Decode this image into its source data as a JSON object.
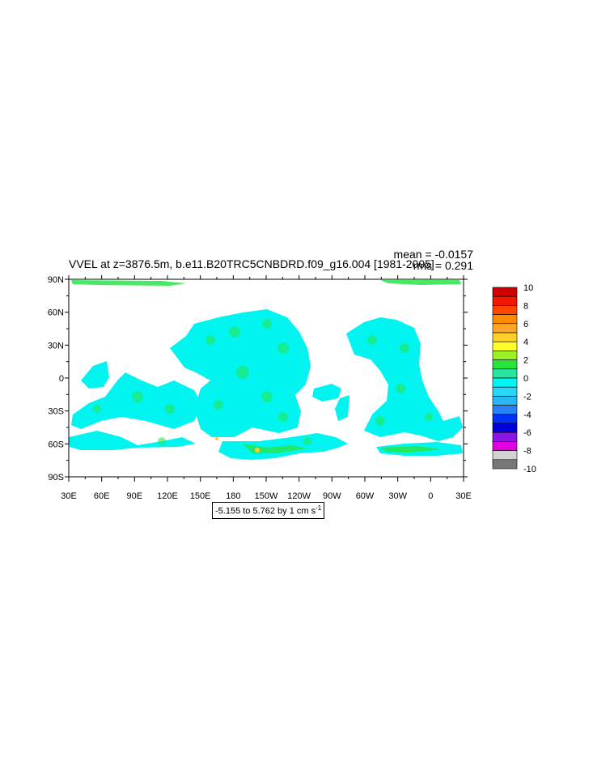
{
  "title": "VVEL at z=3876.5m, b.e11.B20TRC5CNBDRD.f09_g16.004 [1981-2005]",
  "stats": {
    "mean": "mean = -0.0157",
    "rms": "rms = 0.291"
  },
  "map": {
    "lat_labels": [
      "90N",
      "60N",
      "30N",
      "0",
      "30S",
      "60S",
      "90S"
    ],
    "lon_labels": [
      "30E",
      "60E",
      "90E",
      "120E",
      "150E",
      "180",
      "150W",
      "120W",
      "90W",
      "60W",
      "30W",
      "0",
      "30E"
    ],
    "range_text": "-5.155 to 5.762 by 1 cm s",
    "range_unit_exp": "-1"
  },
  "colorbar": {
    "labels": [
      "10",
      "8",
      "6",
      "4",
      "2",
      "0",
      "-2",
      "-4",
      "-6",
      "-8",
      "-10"
    ],
    "colors": [
      "#d10000",
      "#f21500",
      "#ff4500",
      "#ff8c00",
      "#ffa628",
      "#ffd028",
      "#ffff28",
      "#9cf028",
      "#28e53c",
      "#28e5a0",
      "#00f5f5",
      "#28d7f5",
      "#28b9f5",
      "#2882f5",
      "#0032f5",
      "#0000d7",
      "#8c14e6",
      "#e100e1",
      "#d2d2d2",
      "#787878"
    ]
  },
  "colors": {
    "ocean": "#00f5f0",
    "green": "#28e54a",
    "warm": "#ffd028"
  }
}
